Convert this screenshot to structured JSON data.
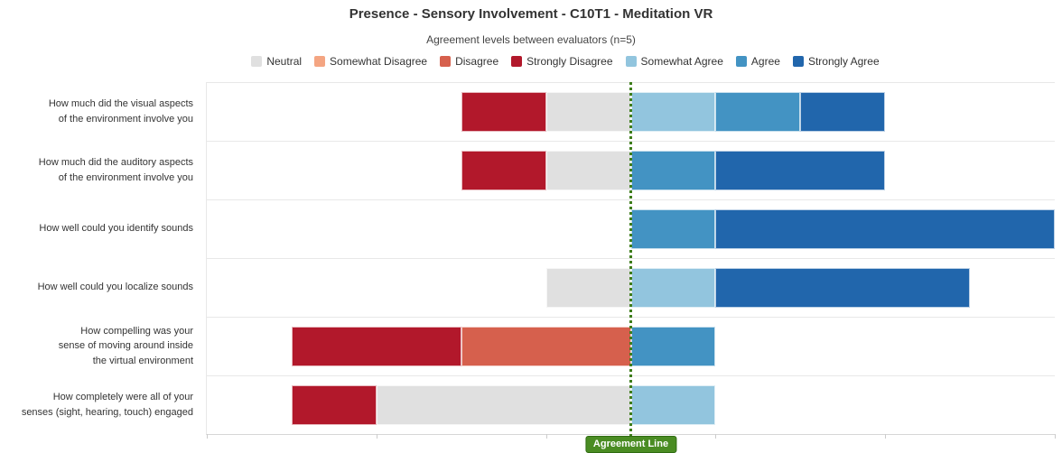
{
  "title": "Presence - Sensory Involvement - C10T1 - Meditation VR",
  "subtitle": "Agreement levels between evaluators (n=5)",
  "agreement_line": {
    "label": "Agreement Line",
    "line_color": "#3e7d1b",
    "label_bg": "#4a8c23",
    "label_border": "#2f6b12"
  },
  "colors": {
    "neutral": "#e0e0e0",
    "somewhat_disagree": "#f4a582",
    "disagree": "#d6604d",
    "strongly_disagree": "#b2182b",
    "somewhat_agree": "#92c5de",
    "agree": "#4393c3",
    "strongly_agree": "#2166ac"
  },
  "legend": [
    {
      "key": "neutral",
      "label": "Neutral"
    },
    {
      "key": "somewhat_disagree",
      "label": "Somewhat Disagree"
    },
    {
      "key": "disagree",
      "label": "Disagree"
    },
    {
      "key": "strongly_disagree",
      "label": "Strongly Disagree"
    },
    {
      "key": "somewhat_agree",
      "label": "Somewhat Agree"
    },
    {
      "key": "agree",
      "label": "Agree"
    },
    {
      "key": "strongly_agree",
      "label": "Strongly Agree"
    }
  ],
  "ylabels": [
    [
      "How much did the visual aspects",
      "of the environment involve you"
    ],
    [
      "How much did the auditory aspects",
      "of the environment involve you"
    ],
    [
      "How well could you identify sounds"
    ],
    [
      "How well could you localize sounds"
    ],
    [
      "How compelling was your",
      "sense of moving around inside",
      "the virtual environment"
    ],
    [
      "How completely were all of your",
      "senses (sight, hearing, touch) engaged"
    ]
  ],
  "chart_data": {
    "type": "bar",
    "variant": "diverging-stacked-horizontal-likert",
    "title": "Presence - Sensory Involvement - C10T1 - Meditation VR",
    "subtitle": "Agreement levels between evaluators (n=5)",
    "unit": "evaluator votes",
    "n_evaluators": 5,
    "categories": [
      "How much did the visual aspects of the environment involve you",
      "How much did the auditory aspects of the environment involve you",
      "How well could you identify sounds",
      "How well could you localize sounds",
      "How compelling was your sense of moving around inside the virtual environment",
      "How completely were all of your senses (sight, hearing, touch) engaged"
    ],
    "series": [
      {
        "key": "neutral",
        "name": "Neutral",
        "values": [
          1,
          1,
          0,
          1,
          0,
          3
        ]
      },
      {
        "key": "somewhat_disagree",
        "name": "Somewhat Disagree",
        "values": [
          0,
          0,
          0,
          0,
          0,
          0
        ]
      },
      {
        "key": "disagree",
        "name": "Disagree",
        "values": [
          0,
          0,
          0,
          0,
          2,
          0
        ]
      },
      {
        "key": "strongly_disagree",
        "name": "Strongly Disagree",
        "values": [
          1,
          1,
          0,
          0,
          2,
          1
        ]
      },
      {
        "key": "somewhat_agree",
        "name": "Somewhat Agree",
        "values": [
          1,
          0,
          0,
          1,
          0,
          1
        ]
      },
      {
        "key": "agree",
        "name": "Agree",
        "values": [
          1,
          1,
          1,
          0,
          1,
          0
        ]
      },
      {
        "key": "strongly_agree",
        "name": "Strongly Agree",
        "values": [
          1,
          2,
          4,
          3,
          0,
          0
        ]
      }
    ],
    "left_stack_order": [
      "strongly_disagree",
      "disagree",
      "somewhat_disagree",
      "neutral"
    ],
    "right_stack_order": [
      "somewhat_agree",
      "agree",
      "strongly_agree"
    ],
    "x_axis": {
      "units_each_side_of_line": 5,
      "tick_positions_pct": [
        0,
        20,
        40,
        60,
        80,
        100
      ],
      "tick_labels_visible": false,
      "center_annotation": "Agreement Line"
    },
    "legend_position": "top",
    "grid": "row-separators-only"
  }
}
